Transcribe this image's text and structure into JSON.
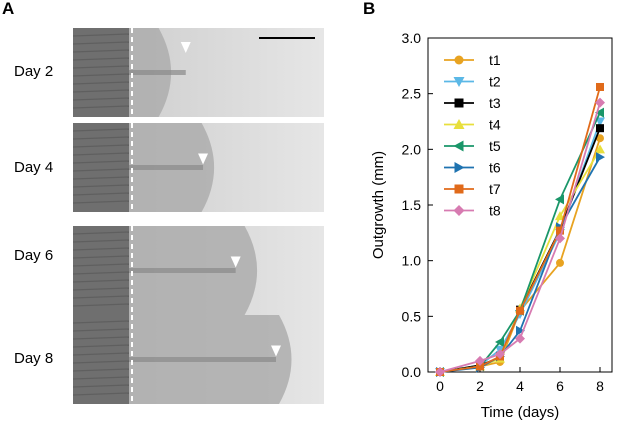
{
  "panel_a": {
    "letter": "A",
    "rows": [
      {
        "label": "Day 2",
        "outgrowth_end": 0.3,
        "arrow_pos": 0.28
      },
      {
        "label": "Day 4",
        "outgrowth_end": 0.55,
        "arrow_pos": 0.37
      },
      {
        "label": "Day 6",
        "outgrowth_end": 0.8,
        "arrow_pos": 0.54
      },
      {
        "label": "Day 8",
        "outgrowth_end": 1.0,
        "arrow_pos": 0.75
      }
    ]
  },
  "panel_b": {
    "letter": "B"
  },
  "chart_data": {
    "type": "line",
    "xlabel": "Time (days)",
    "ylabel": "Outgrowth (mm)",
    "xlim": [
      -0.6,
      8.6
    ],
    "ylim": [
      0,
      3.0
    ],
    "xticks": [
      0,
      2,
      4,
      6,
      8
    ],
    "yticks": [
      0.0,
      0.5,
      1.0,
      1.5,
      2.0,
      2.5,
      3.0
    ],
    "ytick_labels": [
      "0.0",
      "0.5",
      "1.0",
      "1.5",
      "2.0",
      "2.5",
      "3.0"
    ],
    "legend_position": "top-left",
    "x": [
      0,
      2,
      3,
      4,
      6,
      8
    ],
    "series": [
      {
        "name": "t1",
        "color": "#e8a321",
        "marker": "circle",
        "values": [
          0.0,
          0.05,
          0.09,
          0.55,
          0.98,
          2.1
        ]
      },
      {
        "name": "t2",
        "color": "#5bb8e6",
        "marker": "tri-down",
        "values": [
          0.0,
          0.06,
          0.2,
          0.52,
          1.25,
          2.25
        ]
      },
      {
        "name": "t3",
        "color": "#000000",
        "marker": "square",
        "values": [
          0.0,
          0.06,
          0.13,
          0.56,
          1.28,
          2.19
        ]
      },
      {
        "name": "t4",
        "color": "#e8df3c",
        "marker": "tri-up",
        "values": [
          0.0,
          0.05,
          0.12,
          0.57,
          1.4,
          2.0
        ]
      },
      {
        "name": "t5",
        "color": "#1a9669",
        "marker": "tri-left",
        "values": [
          0.0,
          0.05,
          0.27,
          0.55,
          1.55,
          2.33
        ]
      },
      {
        "name": "t6",
        "color": "#1f73b0",
        "marker": "tri-right",
        "values": [
          0.0,
          0.04,
          0.14,
          0.37,
          1.3,
          1.93
        ]
      },
      {
        "name": "t7",
        "color": "#e06a1a",
        "marker": "square",
        "values": [
          0.0,
          0.05,
          0.14,
          0.55,
          1.27,
          2.56
        ]
      },
      {
        "name": "t8",
        "color": "#d77bb1",
        "marker": "diamond",
        "values": [
          0.0,
          0.1,
          0.16,
          0.3,
          1.2,
          2.42
        ]
      }
    ]
  }
}
